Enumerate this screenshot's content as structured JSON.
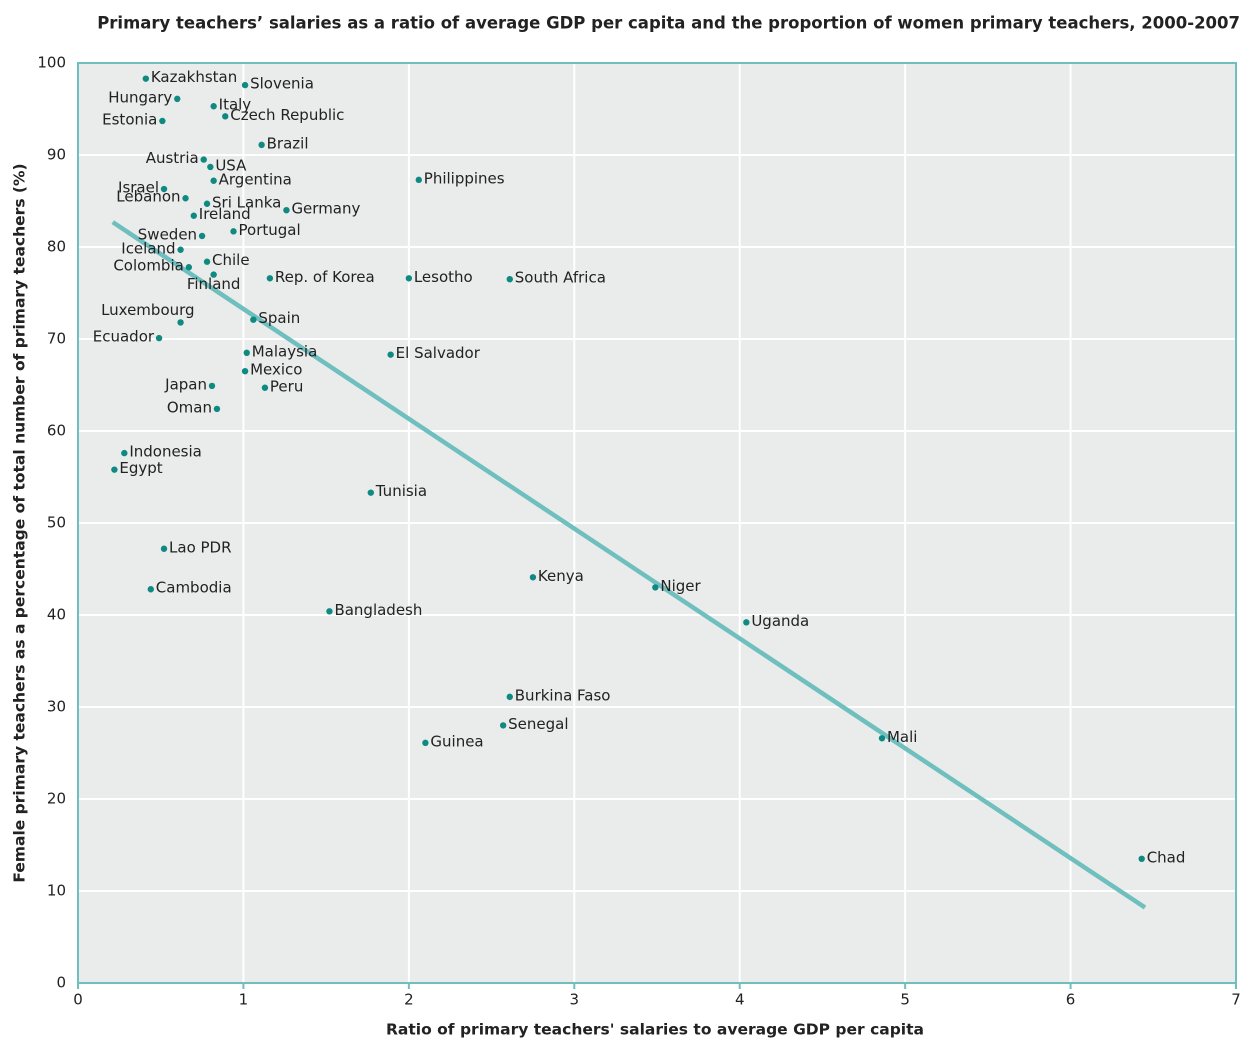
{
  "chart_data": {
    "type": "scatter",
    "title": "Primary teachers’ salaries as a ratio of average GDP per capita and the proportion of women primary teachers, 2000-2007",
    "x_label": "Ratio of primary teachers' salaries to average GDP per capita",
    "y_label": "Female primary teachers as a percentage of total number of primary teachers (%)",
    "series": [
      {
        "color": "#0f8a83",
        "labels": [
          "Kazakhstan",
          "Slovenia",
          "Hungary",
          "Italy",
          "Czech Republic",
          "Estonia",
          "Brazil",
          "Austria",
          "USA",
          "Argentina",
          "Philippines",
          "Israel",
          "Sri Lanka",
          "Lebanon",
          "Ireland",
          "Germany",
          "Portugal",
          "Sweden",
          "Iceland",
          "Chile",
          "Colombia",
          "Finland",
          "Rep. of Korea",
          "Lesotho",
          "Luxembourg",
          "Spain",
          "Ecuador",
          "Malaysia",
          "El Salvador",
          "Mexico",
          "Japan",
          "Peru",
          "Oman",
          "Indonesia",
          "Egypt",
          "Tunisia",
          "Lao PDR",
          "Cambodia",
          "Kenya",
          "Niger",
          "Bangladesh",
          "Uganda",
          "Burkina Faso",
          "Senegal",
          "Guinea",
          "Mali",
          "Chad",
          "South Africa"
        ],
        "x": [
          0.41,
          1.01,
          0.6,
          0.82,
          0.89,
          0.51,
          1.11,
          0.76,
          0.8,
          0.82,
          2.06,
          0.52,
          0.78,
          0.65,
          0.7,
          1.26,
          0.94,
          0.75,
          0.62,
          0.78,
          0.67,
          0.82,
          1.16,
          2.0,
          0.62,
          1.06,
          0.49,
          1.02,
          1.89,
          1.01,
          0.81,
          1.13,
          0.84,
          0.28,
          0.22,
          1.77,
          0.52,
          0.44,
          2.75,
          3.49,
          1.52,
          4.04,
          2.61,
          2.57,
          2.1,
          4.86,
          6.43,
          2.61
        ],
        "values": [
          98.3,
          97.6,
          96.1,
          95.3,
          94.2,
          93.7,
          91.1,
          89.5,
          88.7,
          87.2,
          87.3,
          86.3,
          84.7,
          85.3,
          83.4,
          84.0,
          81.7,
          81.2,
          79.7,
          78.4,
          77.8,
          77.0,
          76.6,
          76.6,
          71.8,
          72.1,
          70.1,
          68.5,
          68.3,
          66.5,
          64.9,
          64.7,
          62.4,
          57.6,
          55.8,
          53.3,
          47.2,
          42.8,
          44.1,
          43.0,
          40.4,
          39.2,
          31.1,
          28.0,
          26.1,
          26.6,
          13.5,
          76.5
        ]
      }
    ],
    "trendline": {
      "color": "#6fbfbf",
      "x": [
        0.21,
        6.45
      ],
      "values": [
        82.7,
        8.2
      ]
    },
    "xlim": [
      0,
      7
    ],
    "xticks": [
      0,
      1,
      2,
      3,
      4,
      5,
      6,
      7
    ],
    "ylim": [
      0,
      100
    ],
    "yticks": [
      0,
      10,
      20,
      30,
      40,
      50,
      60,
      70,
      80,
      90,
      100
    ],
    "grid": true
  }
}
